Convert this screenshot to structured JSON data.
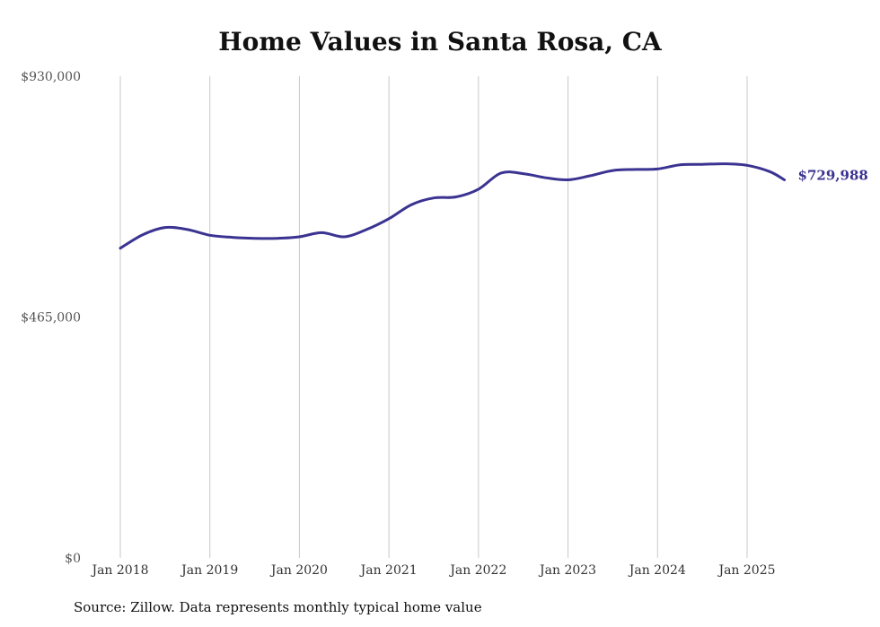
{
  "chart_data": {
    "type": "line",
    "title": "Home Values in Santa Rosa, CA",
    "xlabel": "",
    "ylabel": "",
    "ylim": [
      0,
      930000
    ],
    "y_ticks": [
      "$0",
      "$465,000",
      "$930,000"
    ],
    "x_ticks": [
      "Jan 2018",
      "Jan 2019",
      "Jan 2020",
      "Jan 2021",
      "Jan 2022",
      "Jan 2023",
      "Jan 2024",
      "Jan 2025"
    ],
    "grid": "vertical",
    "series": [
      {
        "color": "#3b3391",
        "x": [
          "2018-01",
          "2018-04",
          "2018-07",
          "2018-10",
          "2019-01",
          "2019-04",
          "2019-07",
          "2019-10",
          "2020-01",
          "2020-04",
          "2020-07",
          "2020-10",
          "2021-01",
          "2021-04",
          "2021-07",
          "2021-10",
          "2022-01",
          "2022-04",
          "2022-07",
          "2022-10",
          "2023-01",
          "2023-04",
          "2023-07",
          "2023-10",
          "2024-01",
          "2024-04",
          "2024-07",
          "2024-10",
          "2025-01",
          "2025-04",
          "2025-06"
        ],
        "values": [
          598000,
          624000,
          638000,
          634000,
          623000,
          619000,
          617000,
          617000,
          620000,
          628000,
          620000,
          634000,
          655000,
          682000,
          695000,
          697000,
          712000,
          743000,
          742000,
          734000,
          730000,
          738000,
          748000,
          750000,
          751000,
          759000,
          760000,
          761000,
          758000,
          746000,
          729988
        ]
      }
    ],
    "end_label": "$729,988",
    "source": "Source: Zillow. Data represents monthly typical home value"
  }
}
